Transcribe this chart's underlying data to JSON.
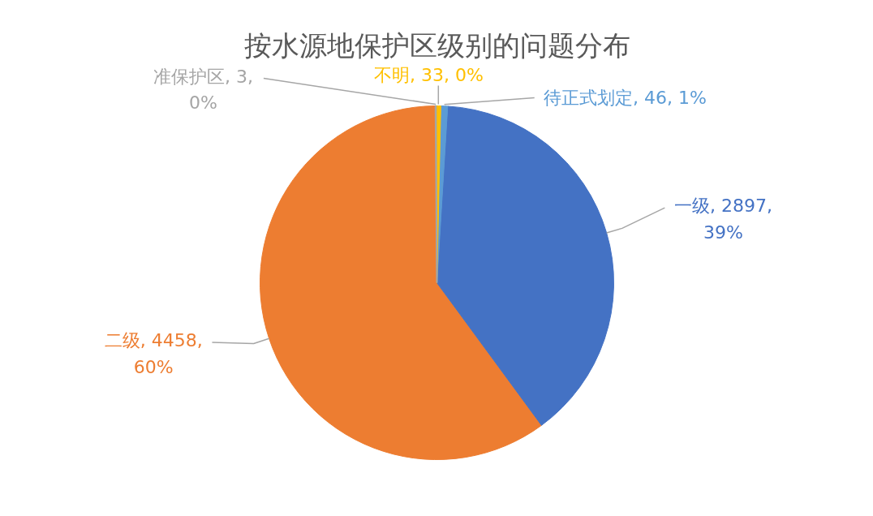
{
  "chart_data": {
    "type": "pie",
    "title": "按水源地保护区级别的问题分布",
    "categories": [
      "一级",
      "二级",
      "准保护区",
      "不明",
      "待正式划定"
    ],
    "values": [
      2897,
      4458,
      3,
      33,
      46
    ],
    "colors": [
      "#4472c4",
      "#ed7d31",
      "#a5a5a5",
      "#ffc000",
      "#5b9bd5"
    ],
    "value_labels": [
      "2897, 39%",
      "4458, 60%",
      "3, 0%",
      "33, 0%",
      "46, 1%"
    ]
  }
}
